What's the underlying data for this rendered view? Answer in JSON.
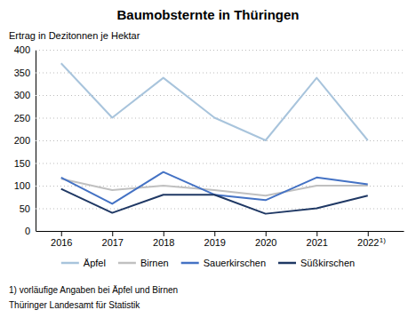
{
  "chart_data": {
    "type": "line",
    "title": "Baumobsternte in Thüringen",
    "ylabel": "Ertrag in Dezitonnen je Hektar",
    "x": [
      2016,
      2017,
      2018,
      2019,
      2020,
      2021,
      2022
    ],
    "series": [
      {
        "name": "Äpfel",
        "color": "#A8C4DC",
        "values": [
          370,
          250,
          338,
          250,
          200,
          338,
          200
        ]
      },
      {
        "name": "Birnen",
        "color": "#C0C0C0",
        "values": [
          115,
          90,
          100,
          90,
          78,
          100,
          100
        ]
      },
      {
        "name": "Sauerkirschen",
        "color": "#4472C4",
        "values": [
          118,
          60,
          130,
          80,
          68,
          118,
          103
        ]
      },
      {
        "name": "Süßkirschen",
        "color": "#1F3864",
        "values": [
          93,
          40,
          80,
          80,
          38,
          50,
          78
        ]
      }
    ],
    "xlim": [
      2015.5,
      2022.7
    ],
    "xticks": [
      2016,
      2017,
      2018,
      2019,
      2020,
      2021,
      2022
    ],
    "ylim": [
      0,
      400
    ],
    "yticks": [
      0,
      50,
      100,
      150,
      200,
      250,
      300,
      350,
      400
    ],
    "grid": true,
    "legend": "bottom",
    "annotations": [
      {
        "text": "1)",
        "x": 2022
      }
    ],
    "footnote": "1) vorläufige Angaben bei Äpfel und Birnen",
    "source": "Thüringer Landesamt für Statistik"
  }
}
